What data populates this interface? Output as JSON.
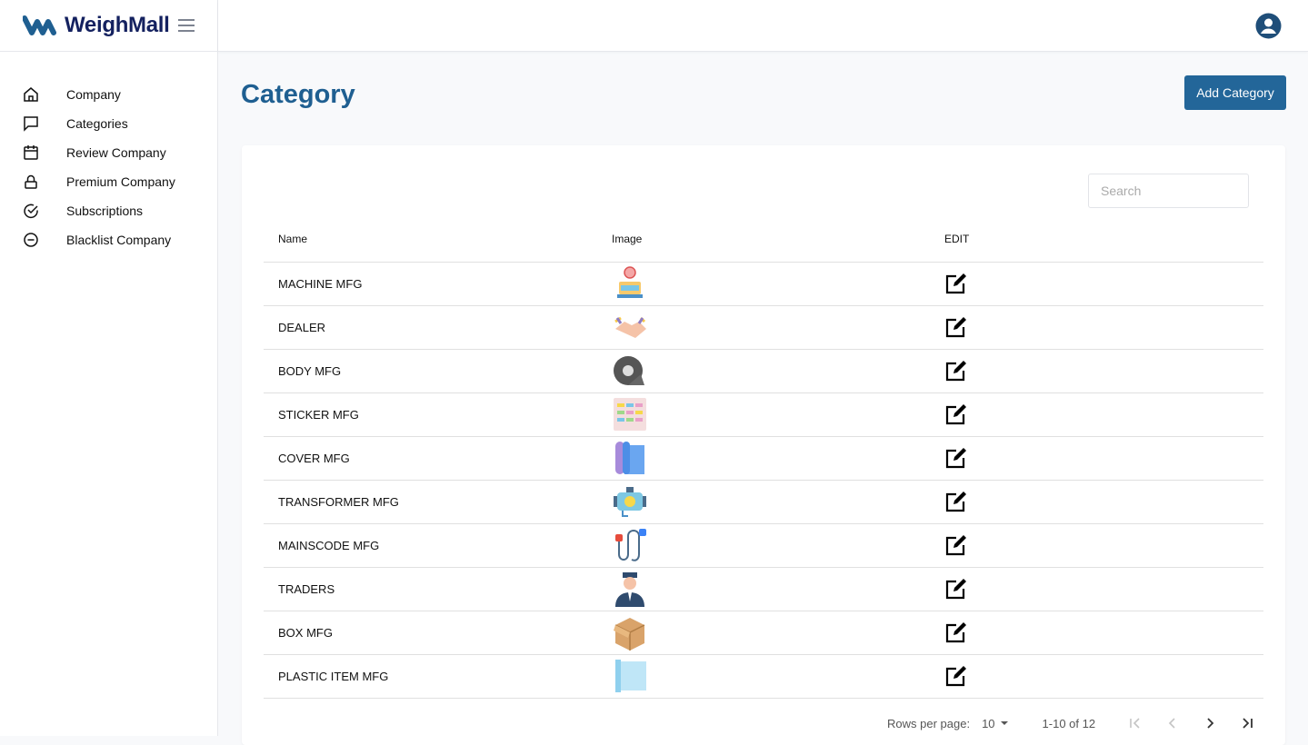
{
  "brand": {
    "name": "WeighMall",
    "logo_color": "#14215f"
  },
  "sidebar": {
    "items": [
      {
        "label": "Company",
        "icon": "home-icon"
      },
      {
        "label": "Categories",
        "icon": "chat-icon"
      },
      {
        "label": "Review Company",
        "icon": "calendar-icon"
      },
      {
        "label": "Premium Company",
        "icon": "lock-icon"
      },
      {
        "label": "Subscriptions",
        "icon": "check-circle-icon"
      },
      {
        "label": "Blacklist Company",
        "icon": "minus-circle-icon"
      }
    ]
  },
  "page": {
    "title": "Category",
    "add_label": "Add Category",
    "accent": "#236699"
  },
  "search": {
    "placeholder": "Search",
    "value": ""
  },
  "table": {
    "headers": [
      "Name",
      "Image",
      "EDIT"
    ],
    "rows": [
      {
        "name": "MACHINE MFG",
        "image": "weighing-scale"
      },
      {
        "name": "DEALER",
        "image": "handshake"
      },
      {
        "name": "BODY MFG",
        "image": "tape-roll"
      },
      {
        "name": "STICKER MFG",
        "image": "sticker-sheet"
      },
      {
        "name": "COVER MFG",
        "image": "cover-rolls"
      },
      {
        "name": "TRANSFORMER MFG",
        "image": "transformer"
      },
      {
        "name": "MAINSCODE MFG",
        "image": "power-cords"
      },
      {
        "name": "TRADERS",
        "image": "trader-person"
      },
      {
        "name": "BOX MFG",
        "image": "cardboard-box"
      },
      {
        "name": "PLASTIC ITEM MFG",
        "image": "plastic-wrap"
      }
    ]
  },
  "pagination": {
    "rows_label": "Rows per page:",
    "rows_value": "10",
    "range": "1-10 of 12"
  }
}
